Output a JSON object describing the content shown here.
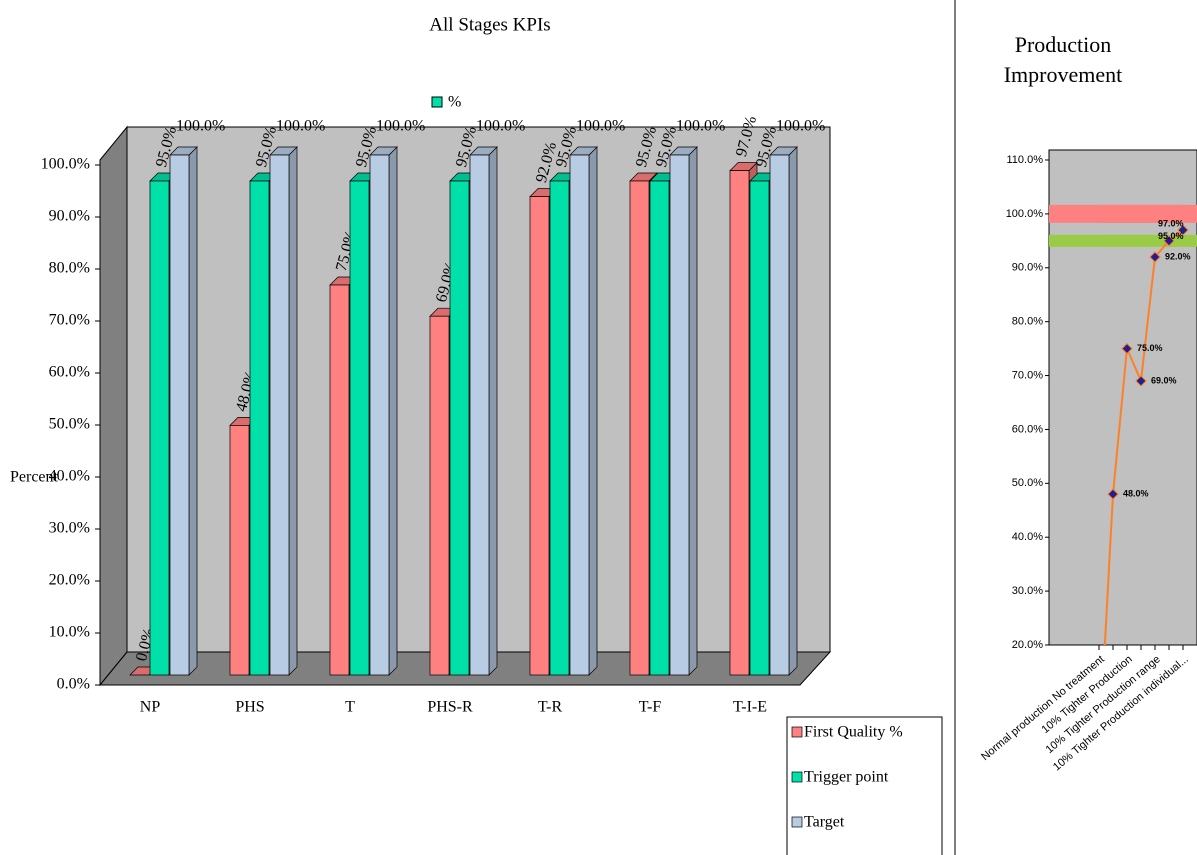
{
  "chart_data": [
    {
      "type": "bar3d",
      "title": "All Stages KPIs",
      "y_label": "Percent",
      "annotation": "%",
      "categories": [
        "NP",
        "PHS",
        "T",
        "PHS-R",
        "T-R",
        "T-F",
        "T-I-E"
      ],
      "series": [
        {
          "name": "First Quality %",
          "color": "#ff8080",
          "values": [
            0,
            48,
            75,
            69,
            92,
            95,
            97
          ],
          "value_labels": [
            "0.0%",
            "48.0%",
            "75.0%",
            "69.0%",
            "92.0%",
            "95.0%",
            "97.0%"
          ]
        },
        {
          "name": "Trigger point",
          "color": "#00e0a8",
          "values": [
            95,
            95,
            95,
            95,
            95,
            95,
            95
          ],
          "value_labels": [
            "95.0%",
            "95.0%",
            "95.0%",
            "95.0%",
            "95.0%",
            "95.0%",
            "95.0%"
          ]
        },
        {
          "name": "Target",
          "color": "#b8cce4",
          "values": [
            100,
            100,
            100,
            100,
            100,
            100,
            100
          ],
          "value_labels": [
            "100.0%",
            "100.0%",
            "100.0%",
            "100.0%",
            "100.0%",
            "100.0%",
            "100.0%"
          ]
        }
      ],
      "ylim": [
        0,
        100
      ],
      "yticks": [
        {
          "value": 0,
          "label": "0.0%"
        },
        {
          "value": 10,
          "label": "10.0%"
        },
        {
          "value": 20,
          "label": "20.0%"
        },
        {
          "value": 30,
          "label": "30.0%"
        },
        {
          "value": 40,
          "label": "40.0%"
        },
        {
          "value": 50,
          "label": "50.0%"
        },
        {
          "value": 60,
          "label": "60.0%"
        },
        {
          "value": 70,
          "label": "70.0%"
        },
        {
          "value": 80,
          "label": "80.0%"
        },
        {
          "value": 90,
          "label": "90.0%"
        },
        {
          "value": 100,
          "label": "100.0%"
        }
      ],
      "legend": "bottom-right"
    },
    {
      "type": "line",
      "title": "Production Improvement",
      "categories": [
        "Normal production No treatment",
        null,
        "10% Tighter Production",
        null,
        "10% Tighter Production range",
        null,
        "10% Tighter Production individual..."
      ],
      "series": [
        {
          "color": "#ff8080",
          "values": [
            100,
            100,
            100,
            100,
            100,
            100,
            100
          ],
          "style": "band"
        },
        {
          "color": "#99cc44",
          "values": [
            95,
            95,
            95,
            95,
            95,
            95,
            95
          ],
          "style": "band"
        },
        {
          "color": "#ff7f27",
          "marker_color": "#1f1f8f",
          "values": [
            0,
            48,
            75,
            69,
            92,
            95,
            97
          ],
          "value_labels": [
            null,
            "48.0%",
            "75.0%",
            "69.0%",
            "92.0%",
            "95.0%",
            "97.0%"
          ]
        }
      ],
      "ylim": [
        20,
        110
      ],
      "yticks": [
        {
          "value": 20,
          "label": "20.0%"
        },
        {
          "value": 30,
          "label": "30.0%"
        },
        {
          "value": 40,
          "label": "40.0%"
        },
        {
          "value": 50,
          "label": "50.0%"
        },
        {
          "value": 60,
          "label": "60.0%"
        },
        {
          "value": 70,
          "label": "70.0%"
        },
        {
          "value": 80,
          "label": "80.0%"
        },
        {
          "value": 90,
          "label": "90.0%"
        },
        {
          "value": 100,
          "label": "100.0%"
        },
        {
          "value": 110,
          "label": "110.0%"
        }
      ]
    }
  ]
}
